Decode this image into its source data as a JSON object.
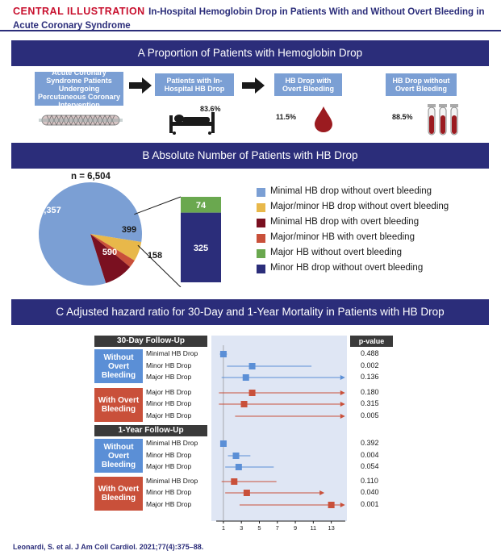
{
  "header": {
    "tag": "CENTRAL ILLUSTRATION",
    "title": "In-Hospital Hemoglobin Drop in Patients With and Without Overt Bleeding in Acute Coronary Syndrome"
  },
  "panel_a": {
    "title": "A  Proportion of Patients with Hemoglobin Drop",
    "box1": "Acute Coronary Syndrome Patients Undergoing Percutaneous Coronary Intervention",
    "box2": "Patients with In-Hospital HB Drop",
    "box2_pct": "83.6%",
    "box3": "HB Drop with Overt Bleeding",
    "box3_pct": "11.5%",
    "box4": "HB Drop without Overt Bleeding",
    "box4_pct": "88.5%"
  },
  "panel_b": {
    "title": "B  Absolute Number of Patients with HB Drop",
    "n_label": "n = 6,504",
    "colors": {
      "minimal_no_bleed": "#7b9fd4",
      "major_minor_no_bleed": "#e8b84a",
      "minimal_bleed": "#7a1020",
      "major_minor_bleed": "#c9503a",
      "major_no_bleed": "#6aa84f",
      "minor_no_bleed": "#2b2d7a"
    },
    "pie": {
      "slices": [
        {
          "label": "5,357",
          "value": 5357,
          "color_key": "minimal_no_bleed"
        },
        {
          "label": "399",
          "value": 399,
          "color_key": "major_minor_no_bleed"
        },
        {
          "label": "158",
          "value": 158,
          "color_key": "major_minor_bleed"
        },
        {
          "label": "590",
          "value": 590,
          "color_key": "minimal_bleed"
        }
      ]
    },
    "stack": [
      {
        "label": "74",
        "value": 74,
        "color_key": "major_no_bleed"
      },
      {
        "label": "325",
        "value": 325,
        "color_key": "minor_no_bleed"
      }
    ],
    "legend": [
      {
        "label": "Minimal HB drop without overt bleeding",
        "color_key": "minimal_no_bleed"
      },
      {
        "label": "Major/minor HB drop without overt bleeding",
        "color_key": "major_minor_no_bleed"
      },
      {
        "label": "Minimal HB drop with overt bleeding",
        "color_key": "minimal_bleed"
      },
      {
        "label": "Major/minor HB with overt bleeding",
        "color_key": "major_minor_bleed"
      },
      {
        "label": "Major HB without overt bleeding",
        "color_key": "major_no_bleed"
      },
      {
        "label": "Minor HB drop without overt bleeding",
        "color_key": "minor_no_bleed"
      }
    ]
  },
  "panel_c": {
    "title": "C  Adjusted hazard ratio for 30-Day and 1-Year Mortality in Patients with HB Drop",
    "pvalue_header": "p-value",
    "followup_30d": "30-Day Follow-Up",
    "followup_1y": "1-Year Follow-Up",
    "group_without": "Without Overt Bleeding",
    "group_with": "With Overt Bleeding",
    "x_ticks": [
      "1",
      "3",
      "5",
      "7",
      "9",
      "11",
      "13"
    ],
    "rows": [
      {
        "label": "Minimal HB Drop",
        "hr": 1.0,
        "lo": 0.6,
        "hi": 1.4,
        "arrow": false,
        "pvalue": "0.488",
        "group": "without"
      },
      {
        "label": "Minor HB Drop",
        "hr": 4.2,
        "lo": 1.4,
        "hi": 10.8,
        "arrow": false,
        "pvalue": "0.002",
        "group": "without"
      },
      {
        "label": "Major HB Drop",
        "hr": 3.5,
        "lo": 0.8,
        "hi": 14.0,
        "arrow": true,
        "pvalue": "0.136",
        "group": "without"
      },
      {
        "label": "Major HB Drop",
        "hr": 4.2,
        "lo": 0.5,
        "hi": 14.0,
        "arrow": true,
        "pvalue": "0.180",
        "group": "with"
      },
      {
        "label": "Minor HB Drop",
        "hr": 3.3,
        "lo": 0.5,
        "hi": 14.0,
        "arrow": true,
        "pvalue": "0.315",
        "group": "with"
      },
      {
        "label": "Major HB Drop",
        "hr": null,
        "lo": 2.3,
        "hi": 14.0,
        "arrow": true,
        "pvalue": "0.005",
        "group": "with"
      },
      {
        "label": "Minimal HB Drop",
        "hr": 1.0,
        "lo": 0.8,
        "hi": 1.2,
        "arrow": false,
        "pvalue": "0.392",
        "group": "without"
      },
      {
        "label": "Minor HB Drop",
        "hr": 2.4,
        "lo": 1.5,
        "hi": 4.0,
        "arrow": false,
        "pvalue": "0.004",
        "group": "without"
      },
      {
        "label": "Major HB Drop",
        "hr": 2.7,
        "lo": 1.2,
        "hi": 6.6,
        "arrow": false,
        "pvalue": "0.054",
        "group": "without"
      },
      {
        "label": "Minimal HB Drop",
        "hr": 2.2,
        "lo": 0.8,
        "hi": 6.9,
        "arrow": false,
        "pvalue": "0.110",
        "group": "with"
      },
      {
        "label": "Minor HB Drop",
        "hr": 3.6,
        "lo": 1.2,
        "hi": 11.7,
        "arrow": true,
        "pvalue": "0.040",
        "group": "with"
      },
      {
        "label": "Major HB Drop",
        "hr": 13.0,
        "lo": 2.8,
        "hi": 14.0,
        "arrow": true,
        "pvalue": "0.001",
        "group": "with"
      }
    ]
  },
  "footer": "Leonardi, S. et al. J Am Coll Cardiol. 2021;77(4):375–88."
}
